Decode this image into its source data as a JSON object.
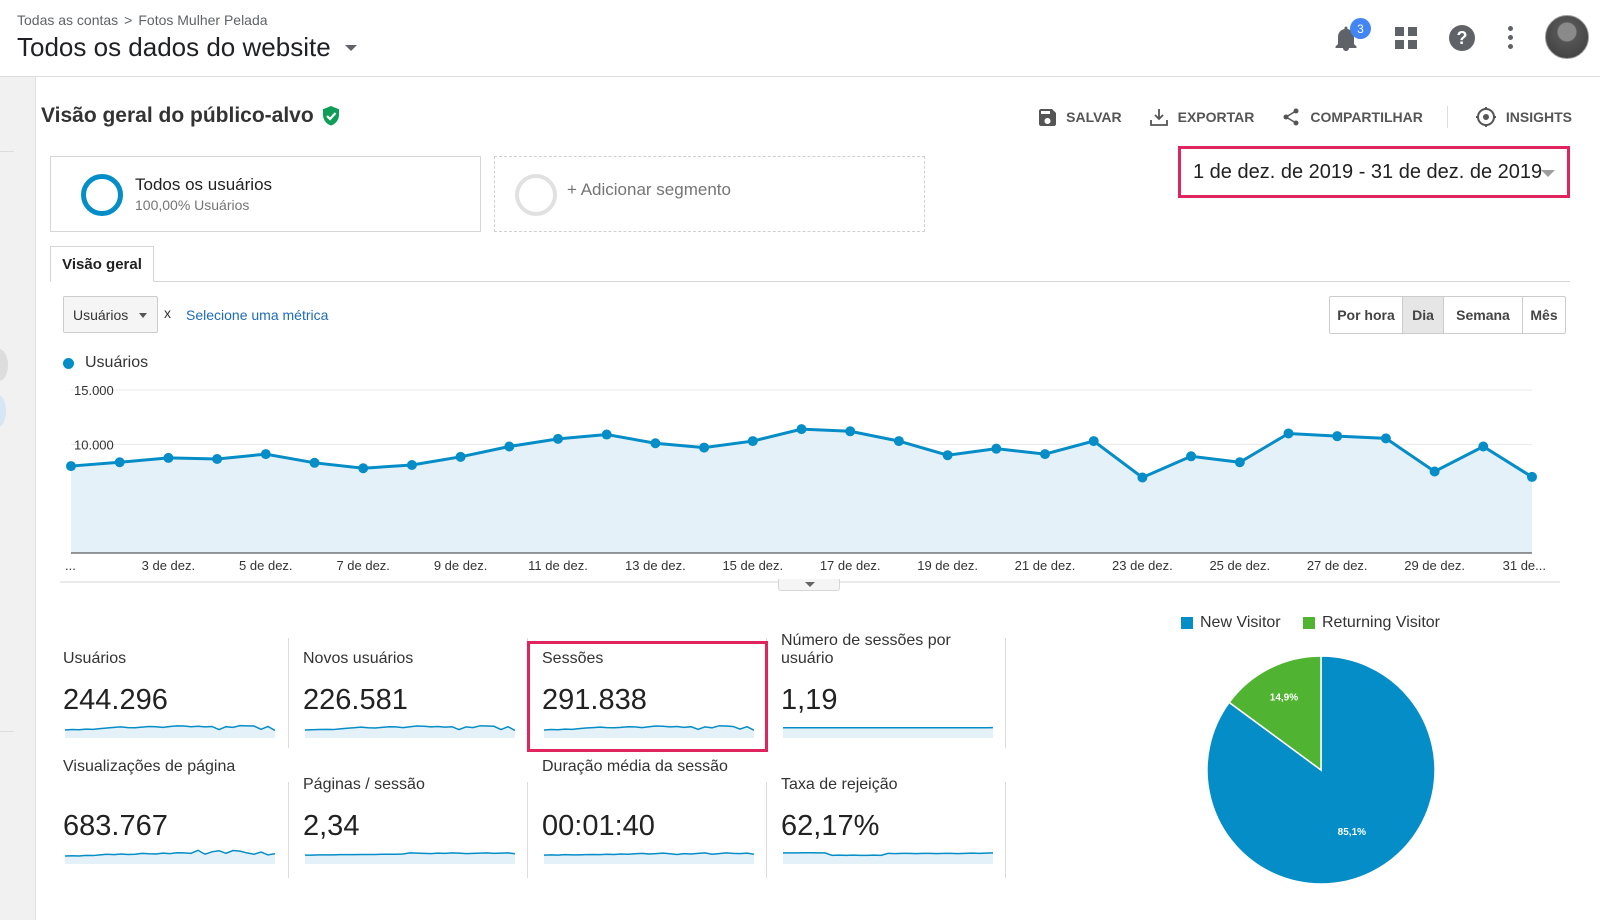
{
  "header": {
    "breadcrumb_root": "Todas as contas",
    "breadcrumb_property": "Fotos Mulher Pelada",
    "view_title": "Todos os dados do website",
    "notification_count": "3"
  },
  "report": {
    "title": "Visão geral do público-alvo",
    "actions": {
      "save": "SALVAR",
      "export": "EXPORTAR",
      "share": "COMPARTILHAR",
      "insights": "INSIGHTS"
    }
  },
  "segments": {
    "active_name": "Todos os usuários",
    "active_sub": "100,00% Usuários",
    "add_label": "+ Adicionar segmento"
  },
  "date_range": "1 de dez. de 2019 - 31 de dez. de 2019",
  "tabs": [
    "Visão geral"
  ],
  "metric_picker": {
    "selected": "Usuários",
    "vs": "x",
    "select_label": "Selecione uma métrica"
  },
  "granularity": {
    "options": [
      "Por hora",
      "Dia",
      "Semana",
      "Mês"
    ],
    "active": "Dia"
  },
  "chart_data": {
    "type": "area",
    "series": [
      {
        "name": "Usuários",
        "values": [
          8000,
          8350,
          8750,
          8650,
          9100,
          8300,
          7800,
          8100,
          8850,
          9800,
          10500,
          10900,
          10100,
          9700,
          10300,
          11400,
          11200,
          10300,
          9000,
          9600,
          9100,
          10300,
          6950,
          8900,
          8350,
          11000,
          10750,
          10550,
          7500,
          9800,
          7000
        ]
      }
    ],
    "y_ticks": [
      "5.000",
      "10.000",
      "15.000"
    ],
    "ylim": [
      0,
      15000
    ],
    "x_labels": [
      "...",
      "3 de dez.",
      "5 de dez.",
      "7 de dez.",
      "9 de dez.",
      "11 de dez.",
      "13 de dez.",
      "15 de dez.",
      "17 de dez.",
      "19 de dez.",
      "21 de dez.",
      "23 de dez.",
      "25 de dez.",
      "27 de dez.",
      "29 de dez.",
      "31 de..."
    ],
    "grid": true,
    "line_color": "#058dc7",
    "fill_color": "#e5f1f9"
  },
  "scorecards": [
    {
      "label": "Usuários",
      "value": "244.296",
      "spark": [
        5,
        5.2,
        5.1,
        5.4,
        5.3,
        5.6,
        5.9,
        6.2,
        6.4,
        6.1,
        6.0,
        6.3,
        6.6,
        6.5,
        6.2,
        6.6,
        6.9,
        6.8,
        6.5,
        6.7,
        6.4,
        6.6,
        5.2,
        6.5,
        6.2,
        7.0,
        6.9,
        6.8,
        5.3,
        6.6,
        4.8
      ]
    },
    {
      "label": "Novos usuários",
      "value": "226.581",
      "spark": [
        5,
        5.1,
        5.2,
        5.3,
        5.2,
        5.5,
        5.8,
        6.0,
        6.3,
        6.0,
        5.9,
        6.2,
        6.5,
        6.4,
        6.1,
        6.5,
        6.8,
        6.7,
        6.4,
        6.6,
        6.3,
        6.5,
        5.2,
        6.4,
        6.1,
        6.9,
        6.8,
        6.7,
        5.2,
        6.5,
        4.8
      ]
    },
    {
      "label": "Sessões",
      "value": "291.838",
      "spark": [
        5,
        5.2,
        5.1,
        5.4,
        5.3,
        5.6,
        5.9,
        6.1,
        6.3,
        6.1,
        6.0,
        6.2,
        6.5,
        6.4,
        6.1,
        6.5,
        6.8,
        6.7,
        6.4,
        6.6,
        6.2,
        6.5,
        5.3,
        6.4,
        6.0,
        6.9,
        6.8,
        6.6,
        5.4,
        6.5,
        4.9
      ]
    },
    {
      "label": "Número de sessões por usuário",
      "value": "1,19",
      "spark": [
        6,
        6,
        6,
        6,
        6,
        6,
        6,
        6,
        6,
        6,
        6,
        6,
        6,
        6,
        6,
        6,
        6,
        6,
        6,
        6,
        6,
        6,
        6,
        6,
        6,
        6,
        6,
        6,
        6,
        6,
        6.1
      ]
    },
    {
      "label": "Visualizações de página",
      "value": "683.767",
      "spark": [
        5,
        5.1,
        5.0,
        5.3,
        5.2,
        5.5,
        5.8,
        5.6,
        5.9,
        5.7,
        5.8,
        6.2,
        6.0,
        5.9,
        6.3,
        6.1,
        6.5,
        6.4,
        6.2,
        7.6,
        5.8,
        6.9,
        7.4,
        6.2,
        7.5,
        7.2,
        6.4,
        5.8,
        6.8,
        5.5,
        6.0
      ]
    },
    {
      "label": "Páginas / sessão",
      "value": "2,34",
      "spark": [
        5.4,
        5.4,
        5.5,
        5.5,
        5.5,
        5.6,
        5.6,
        5.6,
        5.7,
        5.7,
        5.7,
        5.8,
        5.8,
        5.8,
        5.9,
        6.4,
        6.3,
        6.2,
        6.1,
        6.3,
        6.2,
        6.4,
        6.3,
        6.1,
        6.2,
        6.3,
        6.4,
        6.2,
        6.3,
        6.4,
        6.0
      ]
    },
    {
      "label": "Duração média da sessão",
      "value": "00:01:40",
      "spark": [
        5.4,
        5.5,
        5.4,
        5.6,
        5.5,
        5.5,
        5.6,
        5.7,
        5.6,
        5.8,
        5.7,
        5.9,
        5.8,
        6.0,
        6.2,
        5.9,
        6.1,
        6.3,
        6.0,
        5.7,
        6.1,
        5.9,
        6.2,
        6.4,
        5.8,
        6.1,
        6.4,
        6.2,
        6.1,
        6.3,
        5.8
      ]
    },
    {
      "label": "Taxa de rejeição",
      "value": "62,17%",
      "spark": [
        6.4,
        6.4,
        6.4,
        6.5,
        6.5,
        6.4,
        6.4,
        5.3,
        5.4,
        5.3,
        5.4,
        5.3,
        5.3,
        5.4,
        5.3,
        6.2,
        6.1,
        6.2,
        6.2,
        6.1,
        6.2,
        6.2,
        6.1,
        6.2,
        6.2,
        6.1,
        6.2,
        6.3,
        6.2,
        6.3,
        6.4
      ]
    }
  ],
  "pie": {
    "legend": [
      {
        "label": "New Visitor",
        "color": "#058dc7"
      },
      {
        "label": "Returning Visitor",
        "color": "#50b432"
      }
    ],
    "slices": [
      {
        "label": "85,1%",
        "value": 85.1,
        "color": "#058dc7"
      },
      {
        "label": "14,9%",
        "value": 14.9,
        "color": "#50b432"
      }
    ]
  }
}
